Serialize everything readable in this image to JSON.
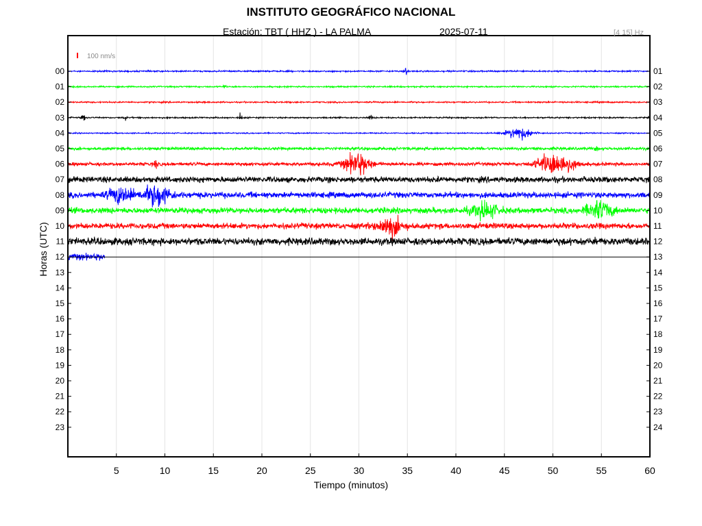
{
  "header": {
    "title": "INSTITUTO GEOGRÁFICO NACIONAL",
    "station": "Estación:  TBT ( HHZ ) - LA PALMA",
    "date": "2025-07-11",
    "filter": "[4 15] Hz"
  },
  "chart_data": {
    "type": "line",
    "title": "INSTITUTO GEOGRÁFICO NACIONAL",
    "xlabel": "Tiempo (minutos)",
    "ylabel": "Horas (UTC)",
    "xlim": [
      0,
      60
    ],
    "x_ticks": [
      5,
      10,
      15,
      20,
      25,
      30,
      35,
      40,
      45,
      50,
      55,
      60
    ],
    "y_ticks_left": [
      "00",
      "01",
      "02",
      "03",
      "04",
      "05",
      "06",
      "07",
      "08",
      "09",
      "10",
      "11",
      "12",
      "13",
      "14",
      "15",
      "16",
      "17",
      "18",
      "19",
      "20",
      "21",
      "22",
      "23"
    ],
    "y_ticks_right": [
      "01",
      "02",
      "03",
      "04",
      "05",
      "06",
      "07",
      "08",
      "09",
      "10",
      "11",
      "12",
      "13",
      "14",
      "15",
      "16",
      "17",
      "18",
      "19",
      "20",
      "21",
      "22",
      "23",
      "24"
    ],
    "grid": "vertical",
    "scale_label": "100 nm/s",
    "scale_color": "#ff0000",
    "colors": [
      "#0000ff",
      "#00ff00",
      "#ff0000",
      "#000000"
    ],
    "rows": [
      {
        "hour": "00",
        "color": "#0000ff",
        "end": 60,
        "noise": 1.5,
        "events": [
          [
            34.8,
            9
          ]
        ]
      },
      {
        "hour": "01",
        "color": "#00ff00",
        "end": 60,
        "noise": 1.5,
        "events": [
          [
            16.1,
            3
          ]
        ]
      },
      {
        "hour": "02",
        "color": "#ff0000",
        "end": 60,
        "noise": 1.5,
        "events": []
      },
      {
        "hour": "03",
        "color": "#000000",
        "end": 60,
        "noise": 1.5,
        "events": [
          [
            1.6,
            8
          ],
          [
            5.9,
            5
          ],
          [
            17.8,
            9
          ],
          [
            31.2,
            5
          ]
        ]
      },
      {
        "hour": "04",
        "color": "#0000ff",
        "end": 60,
        "noise": 1.2,
        "events": [
          [
            46.5,
            13
          ]
        ]
      },
      {
        "hour": "05",
        "color": "#00ff00",
        "end": 60,
        "noise": 3,
        "events": [
          [
            48.2,
            3
          ],
          [
            54.5,
            4
          ]
        ]
      },
      {
        "hour": "06",
        "color": "#ff0000",
        "end": 60,
        "noise": 3.5,
        "events": [
          [
            9.1,
            10
          ],
          [
            29.8,
            22
          ],
          [
            49.5,
            16
          ],
          [
            51.1,
            15
          ]
        ]
      },
      {
        "hour": "07",
        "color": "#000000",
        "end": 60,
        "noise": 6,
        "events": []
      },
      {
        "hour": "08",
        "color": "#0000ff",
        "end": 60,
        "noise": 6,
        "events": [
          [
            5.5,
            15
          ],
          [
            9.2,
            22
          ]
        ]
      },
      {
        "hour": "09",
        "color": "#00ff00",
        "end": 60,
        "noise": 6,
        "events": [
          [
            43.0,
            15
          ],
          [
            54.8,
            18
          ]
        ]
      },
      {
        "hour": "10",
        "color": "#ff0000",
        "end": 60,
        "noise": 6,
        "events": [
          [
            33.2,
            18
          ]
        ]
      },
      {
        "hour": "11",
        "color": "#000000",
        "end": 60,
        "noise": 7.5,
        "events": []
      },
      {
        "hour": "12",
        "color": "#0000ff",
        "end": 3.8,
        "noise": 7,
        "events": []
      }
    ]
  }
}
